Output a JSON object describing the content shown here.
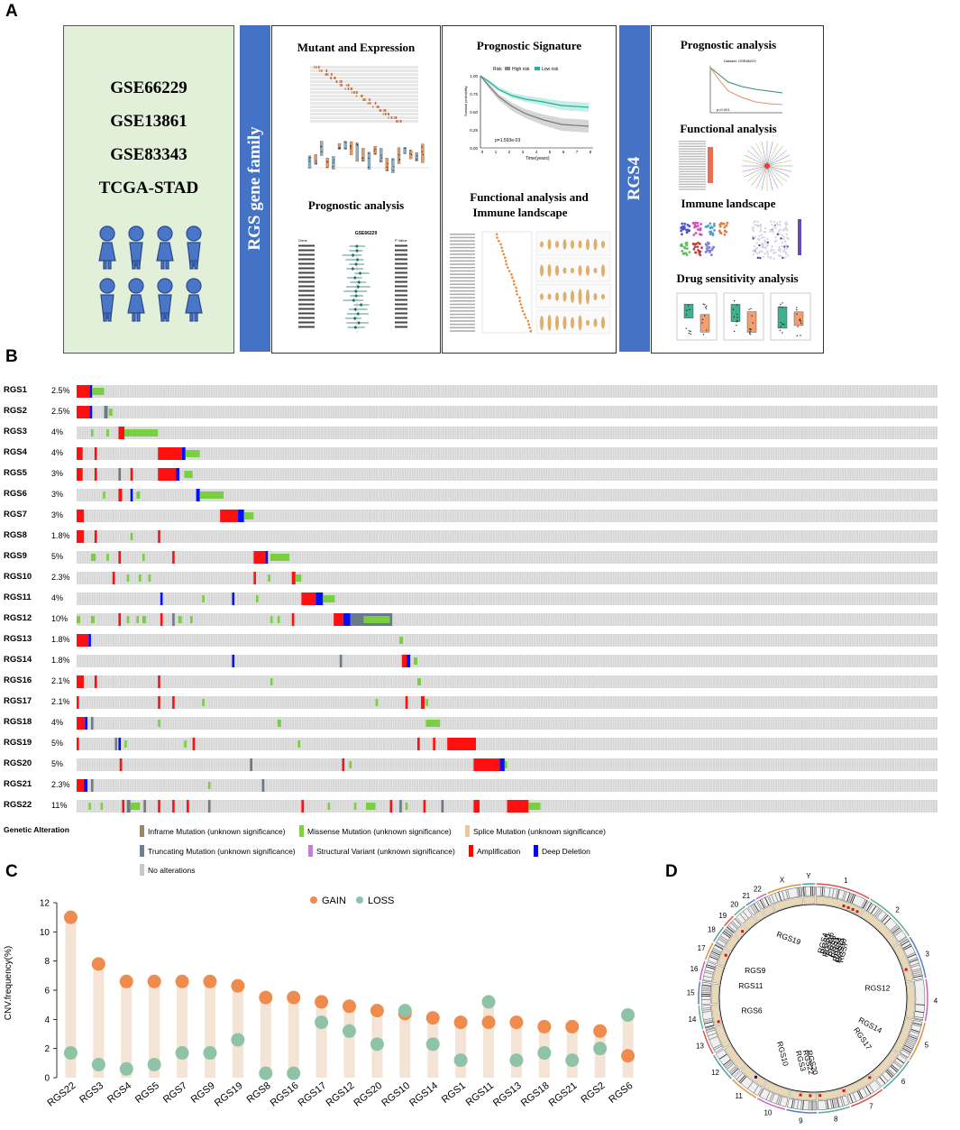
{
  "panels": {
    "a": "A",
    "b": "B",
    "c": "C",
    "d": "D"
  },
  "panelA": {
    "datasets": [
      "GSE66229",
      "GSE13861",
      "GSE83343",
      "TCGA-STAD"
    ],
    "band1": "RGS gene family",
    "band2": "RGS4",
    "box1": {
      "title1": "Mutant and Expression",
      "title2": "Prognostic analysis",
      "forest_title": "GSE66229",
      "forest_gene_col": "Gene",
      "forest_p_col": "P Value"
    },
    "box2": {
      "title1": "Prognostic Signature",
      "title2a": "Functional analysis and",
      "title2b": "Immune landscape",
      "km_legend_label": "Risk",
      "km_high": "High risk",
      "km_low": "Low risk",
      "km_pvalue": "p=1.593e-03",
      "km_xlabel": "Time(years)",
      "km_ylabel": "Survival probability",
      "km_yticks": [
        "1.00",
        "0.75",
        "0.50",
        "0.25",
        "0.00"
      ],
      "km_xticks": [
        "0",
        "1",
        "2",
        "3",
        "4",
        "5",
        "6",
        "7",
        "8"
      ]
    },
    "box3": {
      "title1": "Prognostic analysis",
      "title2": "Functional analysis",
      "title3": "Immune landscape",
      "title4": "Drug sensitivity analysis",
      "km_title": "Dataset: GSE66229",
      "km_p": "p<0.001"
    }
  },
  "panelB": {
    "legend_title": "Genetic Alteration",
    "legend": [
      {
        "label": "Inframe Mutation (unknown significance)",
        "color": "#a0865e"
      },
      {
        "label": "Missense Mutation (unknown significance)",
        "color": "#80d040"
      },
      {
        "label": "Splice Mutation (unknown significance)",
        "color": "#e8c8a0"
      },
      {
        "label": "Truncating Mutation (unknown significance)",
        "color": "#708090"
      },
      {
        "label": "Structural Variant (unknown significance)",
        "color": "#c080e0"
      },
      {
        "label": "Amplification",
        "color": "#ff0000"
      },
      {
        "label": "Deep Deletion",
        "color": "#0000ff"
      },
      {
        "label": "No alterations",
        "color": "#c8c8c8"
      }
    ],
    "rows": [
      {
        "gene": "RGS1",
        "pct": "2.5%"
      },
      {
        "gene": "RGS2",
        "pct": "2.5%"
      },
      {
        "gene": "RGS3",
        "pct": "4%"
      },
      {
        "gene": "RGS4",
        "pct": "4%"
      },
      {
        "gene": "RGS5",
        "pct": "3%"
      },
      {
        "gene": "RGS6",
        "pct": "3%"
      },
      {
        "gene": "RGS7",
        "pct": "3%"
      },
      {
        "gene": "RGS8",
        "pct": "1.8%"
      },
      {
        "gene": "RGS9",
        "pct": "5%"
      },
      {
        "gene": "RGS10",
        "pct": "2.3%"
      },
      {
        "gene": "RGS11",
        "pct": "4%"
      },
      {
        "gene": "RGS12",
        "pct": "10%"
      },
      {
        "gene": "RGS13",
        "pct": "1.8%"
      },
      {
        "gene": "RGS14",
        "pct": "1.8%"
      },
      {
        "gene": "RGS16",
        "pct": "2.1%"
      },
      {
        "gene": "RGS17",
        "pct": "2.1%"
      },
      {
        "gene": "RGS18",
        "pct": "4%"
      },
      {
        "gene": "RGS19",
        "pct": "5%"
      },
      {
        "gene": "RGS20",
        "pct": "5%"
      },
      {
        "gene": "RGS21",
        "pct": "2.3%"
      },
      {
        "gene": "RGS22",
        "pct": "11%"
      }
    ]
  },
  "chart_data": {
    "type": "scatter",
    "title": "",
    "ylabel": "CNV.frequency(%)",
    "ylim": [
      0,
      12
    ],
    "yticks": [
      "0",
      "2",
      "4",
      "6",
      "8",
      "10",
      "12"
    ],
    "legend": {
      "gain": "GAIN",
      "loss": "LOSS"
    },
    "colors": {
      "gain": "#ef8b4c",
      "loss": "#8fc3a8",
      "stem": "#f3e4d6"
    },
    "categories": [
      "RGS22",
      "RGS3",
      "RGS4",
      "RGS5",
      "RGS7",
      "RGS9",
      "RGS19",
      "RGS8",
      "RGS16",
      "RGS17",
      "RGS12",
      "RGS20",
      "RGS10",
      "RGS14",
      "RGS1",
      "RGS11",
      "RGS13",
      "RGS18",
      "RGS21",
      "RGS2",
      "RGS6"
    ],
    "series": [
      {
        "name": "GAIN",
        "values": [
          11.0,
          7.8,
          6.6,
          6.6,
          6.6,
          6.6,
          6.3,
          5.5,
          5.5,
          5.2,
          4.9,
          4.6,
          4.4,
          4.1,
          3.8,
          3.8,
          3.8,
          3.5,
          3.5,
          3.2,
          1.5
        ]
      },
      {
        "name": "LOSS",
        "values": [
          1.7,
          0.9,
          0.6,
          0.9,
          1.7,
          1.7,
          2.6,
          0.3,
          0.3,
          3.8,
          3.2,
          2.3,
          4.6,
          2.3,
          1.2,
          5.2,
          1.2,
          1.7,
          1.2,
          2.0,
          4.3
        ]
      }
    ]
  },
  "panelD": {
    "chromosomes": [
      "1",
      "2",
      "3",
      "4",
      "5",
      "6",
      "7",
      "8",
      "9",
      "10",
      "11",
      "12",
      "13",
      "14",
      "15",
      "16",
      "17",
      "18",
      "19",
      "20",
      "21",
      "22",
      "X",
      "Y"
    ],
    "gene_labels": [
      "RGS4",
      "RGS5",
      "RGS16",
      "RGS8",
      "RGS1",
      "RGS2",
      "RGS21",
      "RGS18",
      "RGS7",
      "RGS12",
      "RGS14",
      "RGS17",
      "RGS20",
      "RGS22",
      "RGS3",
      "RGS10",
      "RGS6",
      "RGS11",
      "RGS9",
      "RGS19"
    ]
  }
}
